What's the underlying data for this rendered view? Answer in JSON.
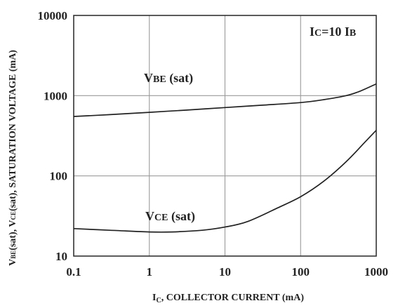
{
  "chart_data": {
    "type": "line",
    "xlabel": "I",
    "xlabel_sub": "C",
    "xlabel_rest": ", COLLECTOR CURRENT (mA)",
    "ylabel_parts": [
      "V",
      "BE",
      "(sat), V",
      "CE",
      "(sat), SATURATION VOLTAGE (mA)"
    ],
    "x_scale": "log",
    "y_scale": "log",
    "xlim": [
      0.1,
      1000
    ],
    "ylim": [
      10,
      10000
    ],
    "x_ticks": [
      0.1,
      1,
      10,
      100,
      1000
    ],
    "x_tick_labels": [
      "0.1",
      "1",
      "10",
      "100",
      "1000"
    ],
    "y_ticks": [
      10,
      100,
      1000,
      10000
    ],
    "y_tick_labels": [
      "10",
      "100",
      "1000",
      "10000"
    ],
    "grid": true,
    "series": [
      {
        "name": "VBE (sat)",
        "x": [
          0.1,
          0.3,
          1,
          3,
          10,
          30,
          100,
          200,
          400,
          600,
          1000
        ],
        "y": [
          550,
          580,
          620,
          660,
          710,
          760,
          820,
          890,
          1000,
          1130,
          1400
        ]
      },
      {
        "name": "VCE (sat)",
        "x": [
          0.1,
          0.3,
          1,
          2,
          5,
          10,
          20,
          50,
          100,
          200,
          400,
          700,
          1000
        ],
        "y": [
          22,
          21,
          20,
          20,
          21,
          23,
          27,
          40,
          55,
          85,
          150,
          260,
          370
        ]
      }
    ],
    "annotations": [
      {
        "key": "vbe",
        "main": "V",
        "sub": "BE",
        "rest": " (sat)"
      },
      {
        "key": "vce",
        "main": "V",
        "sub": "CE",
        "rest": " (sat)"
      },
      {
        "key": "ic",
        "main": "I",
        "sub": "C",
        "rest": "=10 I",
        "sub2": "B"
      }
    ]
  }
}
